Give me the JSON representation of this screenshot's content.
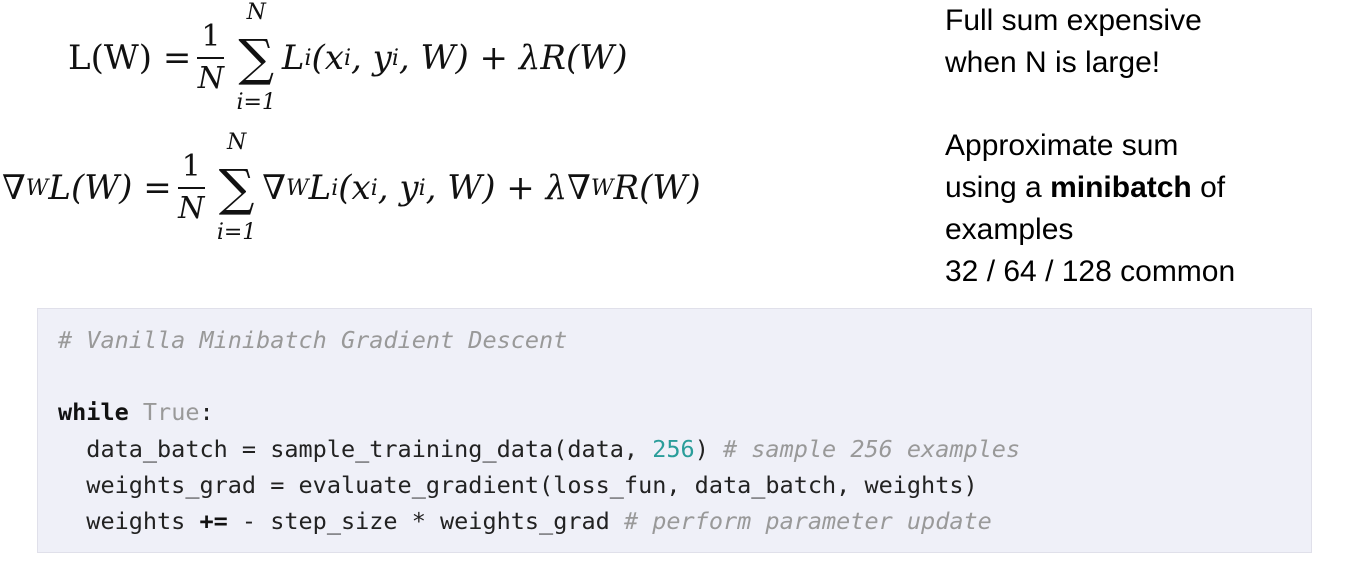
{
  "equations": {
    "loss": {
      "lhs": "L(W) =",
      "num": "1",
      "den": "N",
      "upper": "N",
      "lower": "i=1",
      "term": "L",
      "term_sub": "i",
      "args1": "(x",
      "s1": "i",
      "args2": ", y",
      "s2": "i",
      "rest": ", W) + λR(W)"
    },
    "grad": {
      "nabla": "∇",
      "nabla_sub": "W",
      "lhs": "L(W) =",
      "num": "1",
      "den": "N",
      "upper": "N",
      "lower": "i=1",
      "t_nabla": "∇",
      "t_nabla_sub": "W",
      "term": "L",
      "term_sub": "i",
      "args1": "(x",
      "s1": "i",
      "args2": ", y",
      "s2": "i",
      "rest": ", W) + λ∇",
      "rest_sub": "W",
      "rest2": "R(W)"
    }
  },
  "side_text": {
    "line1": "Full sum expensive",
    "line2": "when N is large!",
    "line3": "Approximate sum",
    "line4_pre": "using a ",
    "line4_bold": "minibatch",
    "line4_post": " of",
    "line5": "examples",
    "line6": "32 / 64 / 128 common"
  },
  "code": {
    "comment": "# Vanilla Minibatch Gradient Descent",
    "while_kw": "while",
    "true_kw": "True",
    "colon": ":",
    "l3_a": "  data_batch = sample_training_data(data, ",
    "l3_num": "256",
    "l3_b": ") ",
    "l3_cm": "# sample 256 examples",
    "l4": "  weights_grad = evaluate_gradient(loss_fun, data_batch, weights)",
    "l5_a": "  weights ",
    "l5_op": "+=",
    "l5_b": " - step_size * weights_grad ",
    "l5_cm": "# perform parameter update"
  },
  "colors": {
    "code_bg": "#eff0f8",
    "number": "#2a9d9a",
    "comment": "#999999"
  }
}
